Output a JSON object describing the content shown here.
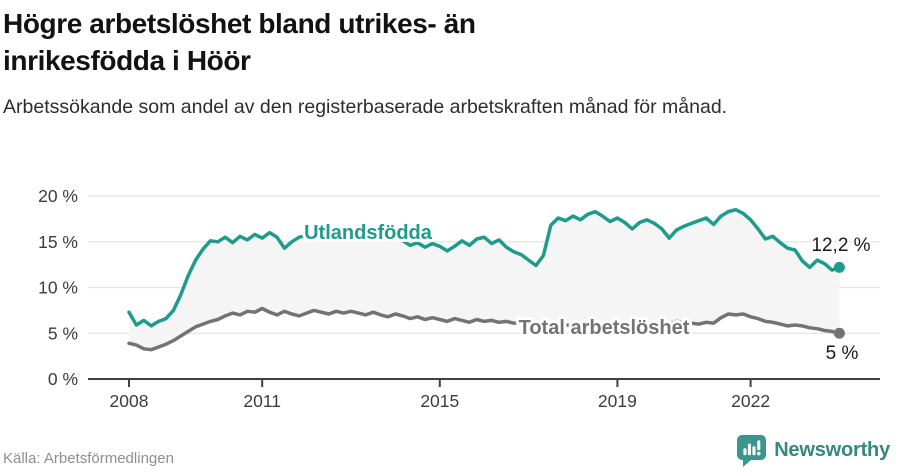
{
  "title": "Högre arbetslöshet bland utrikes- än inrikesfödda i Höör",
  "subtitle": "Arbetssökande som andel av den registerbaserade arbetskraften månad för månad.",
  "source": "Källa: Arbetsförmedlingen",
  "branding": {
    "name": "Newsworthy",
    "icon": "newsworthy-bubble-barchart-icon"
  },
  "colors": {
    "accent_teal": "#1f9b8c",
    "line_gray": "#737373",
    "band_fill": "#f5f5f5",
    "grid": "#e4e4e4",
    "axis": "#404040",
    "tick_text": "#3d3d3d",
    "value_text": "#1a1a1a",
    "title_text": "#121212",
    "source_text": "#8f8f8f",
    "brand_teal": "#3b968e"
  },
  "chart_data": {
    "type": "line",
    "title": "Högre arbetslöshet bland utrikes- än inrikesfödda i Höör",
    "subtitle": "Arbetssökande som andel av den registerbaserade arbetskraften månad för månad.",
    "xlabel": "",
    "ylabel": "",
    "x_start": 2008,
    "x_step_years": 0.1666667,
    "x_end": 2024,
    "ylim": [
      0,
      20
    ],
    "grid": "horizontal",
    "legend_position": "inline-labels",
    "band_fill_between_series": "#f5f5f5",
    "yticks": [
      {
        "value": 0,
        "label": "0 %"
      },
      {
        "value": 5,
        "label": "5 %"
      },
      {
        "value": 10,
        "label": "10 %"
      },
      {
        "value": 15,
        "label": "15 %"
      },
      {
        "value": 20,
        "label": "20 %"
      }
    ],
    "xticks": [
      {
        "value": 2008,
        "label": "2008"
      },
      {
        "value": 2011,
        "label": "2011"
      },
      {
        "value": 2015,
        "label": "2015"
      },
      {
        "value": 2019,
        "label": "2019"
      },
      {
        "value": 2022,
        "label": "2022"
      }
    ],
    "series": [
      {
        "name": "Utlandsfödda",
        "color": "#1f9b8c",
        "end_label": "12,2 %",
        "last_value": 12.2,
        "values": [
          7.3,
          5.9,
          6.4,
          5.8,
          6.3,
          6.6,
          7.5,
          9.2,
          11.3,
          13.0,
          14.2,
          15.1,
          15.0,
          15.5,
          14.9,
          15.6,
          15.2,
          15.8,
          15.4,
          16.0,
          15.5,
          14.3,
          15.0,
          15.5,
          15.7,
          15.3,
          15.8,
          15.4,
          15.9,
          15.3,
          15.6,
          16.0,
          15.4,
          15.8,
          15.3,
          15.7,
          15.9,
          15.1,
          14.6,
          14.9,
          14.4,
          14.8,
          14.5,
          14.0,
          14.5,
          15.1,
          14.6,
          15.3,
          15.5,
          14.8,
          15.2,
          14.4,
          13.9,
          13.6,
          13.0,
          12.4,
          13.5,
          16.8,
          17.6,
          17.3,
          17.8,
          17.4,
          18.0,
          18.3,
          17.8,
          17.2,
          17.6,
          17.1,
          16.4,
          17.1,
          17.4,
          17.0,
          16.4,
          15.4,
          16.3,
          16.7,
          17.0,
          17.3,
          17.6,
          16.9,
          17.8,
          18.3,
          18.5,
          18.1,
          17.4,
          16.4,
          15.3,
          15.6,
          14.9,
          14.3,
          14.1,
          12.9,
          12.2,
          13.0,
          12.6,
          11.9,
          12.2
        ]
      },
      {
        "name": "Total arbetslöshet",
        "color": "#737373",
        "end_label": "5 %",
        "last_value": 5.0,
        "values": [
          3.9,
          3.7,
          3.3,
          3.2,
          3.5,
          3.8,
          4.2,
          4.7,
          5.2,
          5.7,
          6.0,
          6.3,
          6.5,
          6.9,
          7.2,
          7.0,
          7.4,
          7.3,
          7.7,
          7.3,
          7.0,
          7.4,
          7.1,
          6.9,
          7.2,
          7.5,
          7.3,
          7.1,
          7.4,
          7.2,
          7.4,
          7.2,
          7.0,
          7.3,
          7.0,
          6.8,
          7.1,
          6.9,
          6.6,
          6.8,
          6.5,
          6.7,
          6.5,
          6.3,
          6.6,
          6.4,
          6.2,
          6.5,
          6.3,
          6.4,
          6.2,
          6.3,
          6.1,
          6.2,
          6.0,
          6.1,
          5.9,
          6.0,
          5.8,
          5.9,
          5.8,
          5.7,
          5.8,
          5.6,
          5.7,
          5.5,
          5.6,
          5.5,
          5.4,
          5.5,
          5.6,
          5.7,
          5.8,
          6.0,
          6.3,
          6.2,
          6.1,
          6.0,
          6.2,
          6.1,
          6.7,
          7.1,
          7.0,
          7.1,
          6.8,
          6.6,
          6.3,
          6.2,
          6.0,
          5.8,
          5.9,
          5.8,
          5.6,
          5.5,
          5.3,
          5.2,
          5.0
        ]
      }
    ]
  }
}
